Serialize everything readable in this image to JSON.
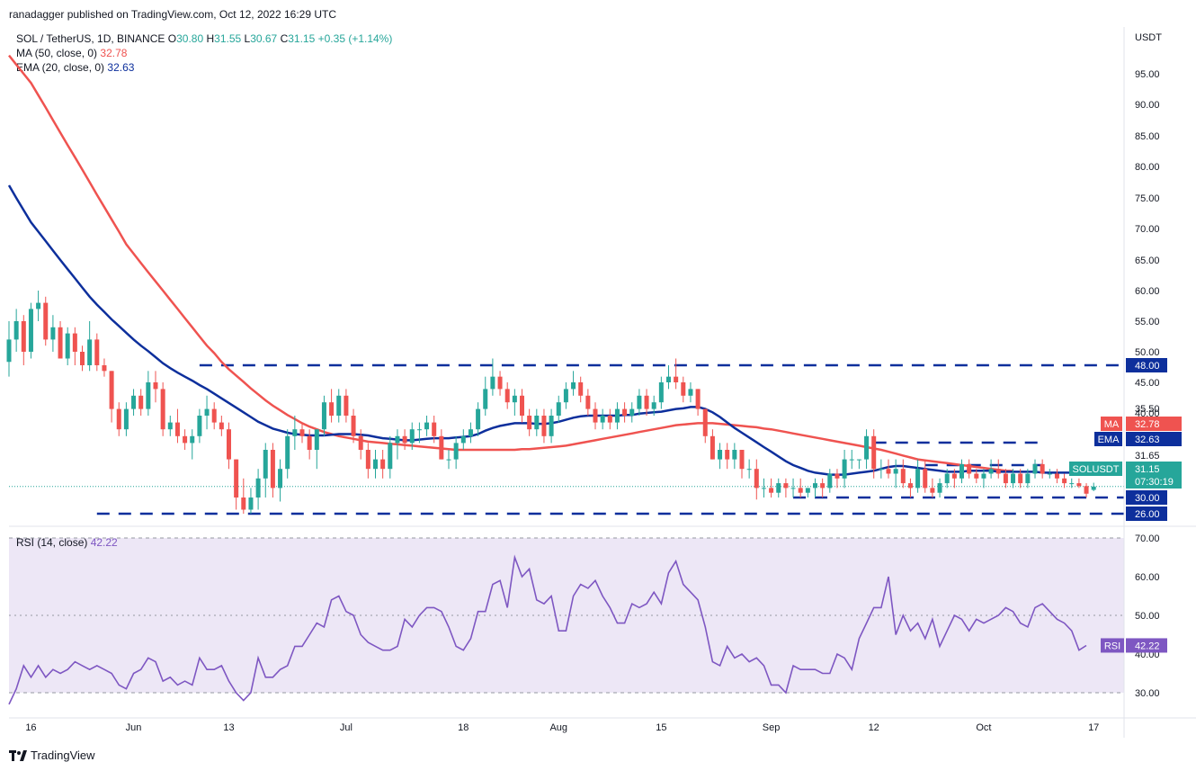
{
  "byline": "ranadagger published on TradingView.com, Oct 12, 2022 16:29 UTC",
  "legend": {
    "symbol": "SOL / TetherUS, 1D, BINANCE",
    "o_label": "O",
    "o_val": "30.80",
    "h_label": "H",
    "h_val": "31.55",
    "l_label": "L",
    "l_val": "30.67",
    "c_label": "C",
    "c_val": "31.15",
    "change": "+0.35 (+1.14%)",
    "ma_label": "MA (50, close, 0)",
    "ma_val": "32.78",
    "ema_label": "EMA (20, close, 0)",
    "ema_val": "32.63"
  },
  "rsi_legend": {
    "label": "RSI (14, close)",
    "value": "42.22"
  },
  "footer_logo": "TradingView",
  "colors": {
    "up": "#26a69a",
    "down": "#ef5350",
    "ma": "#ef5350",
    "ema": "#0d2f9c",
    "rsi": "#7e57c2",
    "level_line": "#0d2f9c",
    "rsi_band": "#ede7f6"
  },
  "chart_data": {
    "type": "candlestick",
    "currency_label": "USDT",
    "y_ticks": [
      "95.00",
      "90.00",
      "85.00",
      "80.00",
      "75.00",
      "70.00",
      "65.00",
      "60.00",
      "55.00",
      "50.00",
      "45.00",
      "40.00",
      "35.50",
      "31.65",
      "30.00",
      "26.00"
    ],
    "x_ticks": [
      "16",
      "Jun",
      "13",
      "Jul",
      "18",
      "Aug",
      "15",
      "Sep",
      "12",
      "Oct",
      "17"
    ],
    "price_badges": [
      {
        "label": "MA",
        "value": "32.78",
        "color": "#ef5350"
      },
      {
        "label": "EMA",
        "value": "32.63",
        "color": "#0d2f9c"
      },
      {
        "label": "SOLUSDT",
        "value": "31.15",
        "extra": "07:30:19",
        "color": "#26a69a"
      }
    ],
    "level_badges": [
      "48.00",
      "30.00",
      "26.00"
    ],
    "horizontal_levels": [
      {
        "value": 48.0,
        "start_day": 26,
        "end_day": 153
      },
      {
        "value": 26.0,
        "start_day": 12,
        "end_day": 153
      },
      {
        "value": 35.5,
        "start_day": 118,
        "end_day": 141
      },
      {
        "value": 30.0,
        "start_day": 107,
        "end_day": 153
      },
      {
        "value": 31.65,
        "start_day": 125,
        "end_day": 141
      }
    ],
    "candles": [
      [
        48.5,
        55,
        46,
        52
      ],
      [
        52,
        57,
        50,
        55
      ],
      [
        55,
        56,
        48,
        50
      ],
      [
        50,
        58,
        49,
        57
      ],
      [
        57,
        60,
        55,
        58
      ],
      [
        58,
        59,
        51,
        52
      ],
      [
        52,
        56,
        50,
        54
      ],
      [
        54,
        55,
        49,
        49
      ],
      [
        49,
        54,
        48,
        53
      ],
      [
        53,
        54,
        48,
        50
      ],
      [
        50,
        51,
        47,
        48
      ],
      [
        48,
        55,
        47,
        52
      ],
      [
        52,
        53,
        47,
        48
      ],
      [
        48,
        49,
        46,
        47
      ],
      [
        47,
        47,
        39,
        41
      ],
      [
        41,
        42,
        37,
        38
      ],
      [
        38,
        42,
        37,
        41
      ],
      [
        41,
        44,
        40,
        43
      ],
      [
        43,
        44,
        40,
        41
      ],
      [
        41,
        47,
        40,
        45
      ],
      [
        45,
        47,
        42,
        44
      ],
      [
        44,
        45,
        37,
        38
      ],
      [
        38,
        40,
        37,
        39
      ],
      [
        39,
        41,
        36,
        37
      ],
      [
        37,
        38,
        35,
        36
      ],
      [
        36,
        38,
        34,
        37
      ],
      [
        37,
        41,
        36,
        40
      ],
      [
        40,
        43,
        38,
        41
      ],
      [
        41,
        42,
        38,
        39
      ],
      [
        39,
        40,
        37,
        38
      ],
      [
        38,
        39,
        33,
        34
      ],
      [
        34,
        34,
        27,
        30
      ],
      [
        30,
        32,
        26,
        27
      ],
      [
        27,
        31,
        26,
        30
      ],
      [
        30,
        33,
        27,
        32
      ],
      [
        32,
        36,
        30,
        35
      ],
      [
        35,
        36,
        30,
        31
      ],
      [
        31,
        34,
        29,
        33
      ],
      [
        33,
        38,
        32,
        37
      ],
      [
        37,
        40,
        35,
        38
      ],
      [
        38,
        39,
        36,
        37
      ],
      [
        37,
        38,
        34,
        35
      ],
      [
        35,
        38,
        33,
        38
      ],
      [
        38,
        43,
        37,
        42
      ],
      [
        42,
        44,
        39,
        40
      ],
      [
        40,
        44,
        39,
        43
      ],
      [
        43,
        44,
        39,
        40
      ],
      [
        40,
        41,
        36,
        37
      ],
      [
        37,
        38,
        34,
        35
      ],
      [
        35,
        36,
        32,
        33
      ],
      [
        33,
        35,
        32,
        34
      ],
      [
        34,
        35,
        32,
        33
      ],
      [
        33,
        37,
        32,
        36
      ],
      [
        36,
        38,
        34,
        37
      ],
      [
        37,
        38,
        35,
        36
      ],
      [
        36,
        39,
        35,
        38
      ],
      [
        38,
        39,
        36,
        38
      ],
      [
        38,
        40,
        37,
        39
      ],
      [
        39,
        40,
        36,
        37
      ],
      [
        37,
        38,
        34,
        34
      ],
      [
        34,
        35,
        33,
        34
      ],
      [
        34,
        37,
        33,
        36
      ],
      [
        36,
        38,
        35,
        37
      ],
      [
        37,
        39,
        36,
        38
      ],
      [
        38,
        42,
        37,
        41
      ],
      [
        41,
        46,
        40,
        44
      ],
      [
        44,
        49,
        43,
        46
      ],
      [
        46,
        47,
        43,
        44
      ],
      [
        44,
        45,
        41,
        42
      ],
      [
        42,
        44,
        40,
        43
      ],
      [
        43,
        44,
        39,
        40
      ],
      [
        40,
        41,
        37,
        38
      ],
      [
        38,
        41,
        37,
        40
      ],
      [
        40,
        41,
        36,
        37
      ],
      [
        37,
        41,
        36,
        40
      ],
      [
        40,
        43,
        39,
        42
      ],
      [
        42,
        45,
        41,
        44
      ],
      [
        44,
        47,
        43,
        45
      ],
      [
        45,
        46,
        42,
        43
      ],
      [
        43,
        44,
        40,
        41
      ],
      [
        41,
        42,
        38,
        39
      ],
      [
        39,
        41,
        38,
        40
      ],
      [
        40,
        41,
        38,
        39
      ],
      [
        39,
        42,
        38,
        41
      ],
      [
        41,
        42,
        39,
        40
      ],
      [
        40,
        42,
        39,
        41
      ],
      [
        41,
        44,
        40,
        43
      ],
      [
        43,
        44,
        40,
        41
      ],
      [
        41,
        43,
        40,
        42
      ],
      [
        42,
        46,
        41,
        45
      ],
      [
        45,
        48,
        44,
        46
      ],
      [
        46,
        49,
        44,
        45
      ],
      [
        45,
        46,
        42,
        43
      ],
      [
        43,
        45,
        42,
        44
      ],
      [
        44,
        44,
        40,
        41
      ],
      [
        41,
        41,
        36,
        37
      ],
      [
        37,
        38,
        34,
        34
      ],
      [
        34,
        36,
        33,
        35
      ],
      [
        35,
        36,
        33,
        34
      ],
      [
        34,
        36,
        33,
        35
      ],
      [
        35,
        35,
        32,
        33
      ],
      [
        33,
        34,
        32,
        33
      ],
      [
        33,
        34,
        29.5,
        31
      ],
      [
        31,
        32,
        30,
        31
      ],
      [
        31,
        32,
        30,
        30.5
      ],
      [
        30.5,
        32,
        30,
        31.5
      ],
      [
        31.5,
        32,
        30,
        31
      ],
      [
        31,
        32,
        30,
        31
      ],
      [
        31,
        32,
        30,
        30.5
      ],
      [
        30.5,
        31,
        30,
        31
      ],
      [
        31,
        32,
        30,
        31.5
      ],
      [
        31.5,
        32,
        30,
        31
      ],
      [
        31,
        33,
        30.5,
        32.5
      ],
      [
        32.5,
        33,
        31,
        32
      ],
      [
        32,
        35,
        31,
        34
      ],
      [
        34,
        35,
        33,
        34
      ],
      [
        34,
        34,
        33,
        34
      ],
      [
        34,
        38,
        33,
        37
      ],
      [
        37,
        38,
        32,
        33
      ],
      [
        33,
        34,
        32,
        33
      ],
      [
        33,
        34,
        32,
        32.5
      ],
      [
        32.5,
        34,
        31,
        33
      ],
      [
        33,
        34,
        31,
        31.5
      ],
      [
        31.5,
        32,
        30,
        31
      ],
      [
        31,
        34,
        30.5,
        33
      ],
      [
        33,
        34,
        30.5,
        31
      ],
      [
        31,
        32,
        30,
        30.5
      ],
      [
        30.5,
        32,
        30,
        31.5
      ],
      [
        31.5,
        33,
        31,
        32.5
      ],
      [
        32.5,
        33,
        31,
        32
      ],
      [
        32,
        34,
        31.5,
        33.5
      ],
      [
        33.5,
        34,
        32,
        32.5
      ],
      [
        32.5,
        33,
        31.5,
        32
      ],
      [
        32,
        33,
        31,
        32.5
      ],
      [
        32.5,
        34,
        32,
        33
      ],
      [
        33,
        34,
        32,
        32.5
      ],
      [
        32.5,
        33,
        31,
        31.5
      ],
      [
        31.5,
        33,
        31,
        32.5
      ],
      [
        32.5,
        33,
        31,
        31.5
      ],
      [
        31.5,
        33,
        31,
        32.5
      ],
      [
        32.5,
        34,
        32,
        33.5
      ],
      [
        33.5,
        34,
        32,
        32.5
      ],
      [
        32.5,
        33,
        32,
        32.5
      ],
      [
        32.5,
        33,
        31.5,
        32
      ],
      [
        32,
        32.5,
        31,
        31.5
      ],
      [
        31.5,
        32,
        31,
        31.5
      ],
      [
        31.5,
        32,
        31,
        31.2
      ],
      [
        31.2,
        31.5,
        30,
        30.4
      ],
      [
        30.8,
        31.55,
        30.67,
        31.15
      ]
    ],
    "ma50": [
      98,
      96.5,
      95,
      93.5,
      91.5,
      89.5,
      87.5,
      85.5,
      83.5,
      81.5,
      79.5,
      77.5,
      75.5,
      73.5,
      71.5,
      69.5,
      67.5,
      66,
      64.5,
      63,
      61.5,
      60,
      58.5,
      57,
      55.5,
      54,
      52.5,
      51,
      49.8,
      48.5,
      47.3,
      46.2,
      45.1,
      44.1,
      43.2,
      42.3,
      41.5,
      40.8,
      40.1,
      39.5,
      38.9,
      38.4,
      38,
      37.6,
      37.3,
      37,
      36.8,
      36.6,
      36.4,
      36.2,
      36.1,
      36,
      35.9,
      35.8,
      35.7,
      35.6,
      35.5,
      35.4,
      35.3,
      35.2,
      35.1,
      35,
      35,
      35,
      35,
      35,
      35,
      35,
      35,
      35,
      35.1,
      35.1,
      35.2,
      35.3,
      35.4,
      35.5,
      35.6,
      35.8,
      36,
      36.2,
      36.4,
      36.6,
      36.8,
      37,
      37.2,
      37.4,
      37.6,
      37.8,
      38,
      38.2,
      38.4,
      38.6,
      38.7,
      38.8,
      38.9,
      38.9,
      38.9,
      38.8,
      38.7,
      38.6,
      38.5,
      38.4,
      38.3,
      38.1,
      38,
      37.8,
      37.6,
      37.4,
      37.2,
      37,
      36.8,
      36.6,
      36.4,
      36.2,
      36,
      35.8,
      35.6,
      35.4,
      35.2,
      35,
      34.8,
      34.6,
      34.4,
      34.2,
      34,
      33.9,
      33.8,
      33.7,
      33.6,
      33.5,
      33.4,
      33.3,
      33.2,
      33.1,
      33,
      32.9,
      32.8,
      32.78
    ],
    "ema20": [
      77,
      75,
      73,
      71,
      69.5,
      68,
      66.5,
      65,
      63.5,
      62,
      60.5,
      59,
      57.7,
      56.5,
      55.3,
      54.2,
      53.1,
      52,
      51,
      50.1,
      49.2,
      48.3,
      47.5,
      46.7,
      46,
      45.3,
      44.6,
      44,
      43.3,
      42.6,
      41.9,
      41.2,
      40.5,
      39.8,
      39.1,
      38.6,
      38.1,
      37.8,
      37.5,
      37.3,
      37.2,
      37.1,
      37.1,
      37.1,
      37.2,
      37.3,
      37.3,
      37.3,
      37.2,
      37.1,
      36.9,
      36.7,
      36.6,
      36.5,
      36.4,
      36.4,
      36.5,
      36.6,
      36.7,
      36.7,
      36.7,
      36.8,
      36.9,
      37,
      37.3,
      37.8,
      38.2,
      38.5,
      38.7,
      38.9,
      38.9,
      38.9,
      38.8,
      38.8,
      38.9,
      39.1,
      39.4,
      39.7,
      39.9,
      40,
      40,
      40,
      40,
      40,
      40.1,
      40.1,
      40.3,
      40.4,
      40.5,
      40.6,
      40.8,
      41,
      41.1,
      41.3,
      41.3,
      41,
      40.5,
      39.8,
      39,
      38.2,
      37.5,
      36.8,
      36.1,
      35.4,
      34.8,
      34.3,
      33.8,
      33.4,
      33.1,
      32.8,
      32.6,
      32.5,
      32.4,
      32.4,
      32.4,
      32.5,
      32.6,
      32.7,
      32.8,
      33,
      33.2,
      33.3,
      33.3,
      33.2,
      33.1,
      33,
      32.9,
      32.8,
      32.7,
      32.7,
      32.7,
      32.8,
      32.8,
      32.8,
      32.8,
      32.7,
      32.7,
      32.7,
      32.7,
      32.7,
      32.7,
      32.6,
      32.6,
      32.6,
      32.6,
      32.6,
      32.63
    ],
    "rsi": {
      "label": "RSI (14, close)",
      "value": 42.22,
      "y_ticks": [
        "70.00",
        "60.00",
        "50.00",
        "40.00",
        "30.00"
      ],
      "band": [
        30,
        70
      ],
      "midline": 50,
      "values": [
        27,
        31,
        37,
        34,
        37,
        34,
        36,
        35,
        36,
        38,
        37,
        36,
        37,
        36,
        35,
        32,
        31,
        35,
        36,
        39,
        38,
        33,
        34,
        32,
        33,
        32,
        39,
        36,
        36,
        37,
        33,
        30,
        28,
        30,
        39,
        34,
        34,
        36,
        37,
        42,
        42,
        45,
        48,
        47,
        54,
        55,
        51,
        50,
        45,
        43,
        42,
        41,
        41,
        42,
        49,
        47,
        50,
        52,
        52,
        51,
        47,
        42,
        41,
        44,
        51,
        51,
        58,
        59,
        52,
        65,
        60,
        62,
        54,
        53,
        55,
        46,
        46,
        55,
        58,
        57,
        59,
        55,
        52,
        48,
        48,
        53,
        52,
        53,
        56,
        53,
        61,
        64,
        58,
        56,
        54,
        47,
        38,
        37,
        42,
        39,
        40,
        38,
        39,
        37,
        32,
        32,
        30,
        37,
        36,
        36,
        36,
        35,
        35,
        40,
        39,
        36,
        44,
        48,
        52,
        52,
        60,
        45,
        50,
        46,
        48,
        44,
        49,
        42,
        46,
        50,
        49,
        46,
        49,
        48,
        49,
        50,
        52,
        51,
        48,
        47,
        52,
        53,
        51,
        49,
        48,
        46,
        41,
        42.22
      ]
    }
  }
}
